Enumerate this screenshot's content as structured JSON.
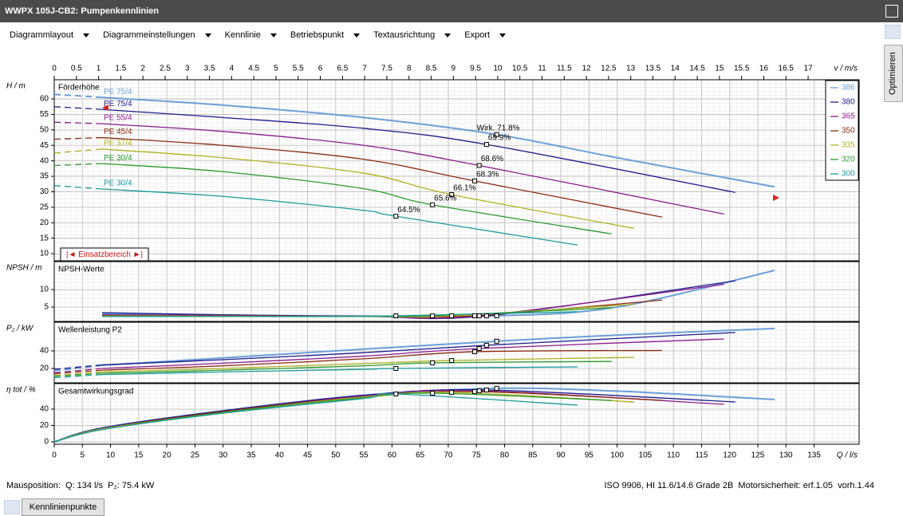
{
  "title_bar": "WWPX 105J-CB2: Pumpenkennlinien",
  "menu": [
    "Diagrammlayout",
    "Diagrammeinstellungen",
    "Kennlinie",
    "Betriebspunkt",
    "Textausrichtung",
    "Export"
  ],
  "side_tab": "Optimieren",
  "chart_data": {
    "type": "line",
    "x_label": "Q / l/s",
    "xlim": [
      0,
      143
    ],
    "xticks": [
      0,
      5,
      10,
      15,
      20,
      25,
      30,
      35,
      40,
      45,
      50,
      55,
      60,
      65,
      70,
      75,
      80,
      85,
      90,
      95,
      100,
      105,
      110,
      115,
      120,
      125,
      130,
      135
    ],
    "x2_label": "v / m/s",
    "x2lim": [
      0,
      18.15
    ],
    "x2ticks": [
      0,
      0.5,
      1,
      1.5,
      2,
      2.5,
      3,
      3.5,
      4,
      4.5,
      5,
      5.5,
      6,
      6.5,
      7,
      7.5,
      8,
      8.5,
      9,
      9.5,
      10,
      10.5,
      11,
      11.5,
      12,
      12.5,
      13,
      13.5,
      14,
      14.5,
      15,
      15.5,
      16,
      16.5,
      17
    ],
    "grid": true,
    "range_label": "|◄ Einsatzbereich ►|",
    "panels": [
      {
        "key": "h",
        "axis_label": "H / m",
        "title": "Förderhöhe",
        "ylim": [
          7.7,
          66.2
        ],
        "yticks": [
          10,
          15,
          20,
          25,
          30,
          35,
          40,
          45,
          50,
          55,
          60
        ],
        "lead_dashed": true
      },
      {
        "key": "npsh",
        "axis_label": "NPSH / m",
        "title": "NPSH-Werte",
        "ylim": [
          0.9,
          18
        ],
        "yticks": [
          5,
          10
        ],
        "lead_dashed": false
      },
      {
        "key": "p2",
        "axis_label": "P₂ / kW",
        "title": "Wellenleistung P2",
        "ylim": [
          3.6,
          72.7
        ],
        "yticks": [
          20,
          40
        ],
        "lead_dashed": true
      },
      {
        "key": "eta",
        "axis_label": "η tot / %",
        "title": "Gesamtwirkungsgrad",
        "ylim": [
          -2.9,
          71.2
        ],
        "yticks": [
          0,
          20,
          40
        ],
        "lead_dashed": false
      }
    ],
    "series": [
      {
        "name": "386",
        "color": "#6a9fd8",
        "curve_label": "PE 75/4",
        "x": [
          0,
          8.5,
          30,
          55,
          78.6,
          100,
          128
        ],
        "h": [
          61.5,
          60.5,
          58,
          54,
          48.5,
          41,
          31.6
        ],
        "npsh": [
          null,
          3.2,
          2.7,
          2.4,
          2.5,
          5,
          15.5
        ],
        "p2": [
          17.3,
          23.6,
          32,
          42,
          51,
          58,
          65.5
        ],
        "eta": [
          0,
          17,
          38,
          57,
          65.4,
          62,
          51.7
        ],
        "point_labels": [
          null,
          null,
          null,
          null,
          "Wirk.  71.8%",
          null,
          null
        ]
      },
      {
        "name": "380",
        "color": "#1c1c8c",
        "curve_label": "PE 75/4",
        "x": [
          0,
          8.5,
          30,
          55,
          76.8,
          121
        ],
        "h": [
          57.5,
          56.6,
          54,
          50.5,
          45.3,
          29.8
        ],
        "npsh": [
          null,
          3.4,
          2.8,
          2.4,
          2.5,
          12.5
        ],
        "p2": [
          19,
          24,
          30,
          38,
          46.4,
          61
        ],
        "eta": [
          0,
          17,
          38,
          57,
          63.4,
          48.8
        ],
        "point_labels": [
          null,
          null,
          null,
          null,
          "69.9%",
          null
        ]
      },
      {
        "name": "365",
        "color": "#8b1a8b",
        "curve_label": "PE 55/4",
        "x": [
          0,
          8.5,
          30,
          55,
          75.5,
          119
        ],
        "h": [
          52.5,
          52,
          49.5,
          45,
          38.5,
          22.8
        ],
        "npsh": [
          null,
          2.8,
          2.6,
          2.4,
          2.5,
          11.5
        ],
        "p2": [
          15,
          20,
          26,
          34,
          42.7,
          53.6
        ],
        "eta": [
          0,
          16,
          37,
          56,
          62.4,
          45.9
        ],
        "point_labels": [
          null,
          null,
          null,
          null,
          "68.6%",
          null
        ]
      },
      {
        "name": "350",
        "color": "#8b2a10",
        "curve_label": "PE 45/4",
        "x": [
          0,
          8.5,
          30,
          55,
          74.7,
          108
        ],
        "h": [
          47,
          47.5,
          45,
          40.5,
          33.5,
          21.8
        ],
        "npsh": [
          null,
          2.6,
          2.5,
          2.4,
          2.5,
          7
        ],
        "p2": [
          14,
          18,
          23,
          31,
          39,
          40.5
        ],
        "eta": [
          0,
          16,
          37,
          55,
          61.5,
          50.7
        ],
        "point_labels": [
          null,
          null,
          null,
          null,
          "68.3%",
          null
        ]
      },
      {
        "name": "335",
        "color": "#b0b020",
        "curve_label": "PE 37/4",
        "x": [
          0,
          8.5,
          30,
          55,
          70.6,
          103
        ],
        "h": [
          42.5,
          43.8,
          41,
          36,
          29.1,
          18.2
        ],
        "npsh": [
          null,
          2.5,
          2.4,
          2.3,
          2.5,
          5.8
        ],
        "p2": [
          12,
          16,
          20,
          25.5,
          29,
          32.7
        ],
        "eta": [
          0,
          16,
          36,
          55,
          60.5,
          48.8
        ],
        "point_labels": [
          null,
          null,
          null,
          null,
          "66.1%",
          null
        ]
      },
      {
        "name": "320",
        "color": "#2a9a2a",
        "curve_label": "PE 30/4",
        "x": [
          0,
          8.5,
          30,
          55,
          67.2,
          99
        ],
        "h": [
          38.5,
          39.1,
          36.5,
          31,
          25.8,
          16.4
        ],
        "npsh": [
          null,
          2.4,
          2.3,
          2.3,
          2.5,
          4.8
        ],
        "p2": [
          11,
          14.5,
          18,
          23,
          26.4,
          28
        ],
        "eta": [
          0,
          15,
          36,
          54,
          59.5,
          50.7
        ],
        "point_labels": [
          null,
          null,
          null,
          null,
          "65.6%",
          null
        ]
      },
      {
        "name": "300",
        "color": "#1a9a9a",
        "curve_label": "PE 30/4",
        "x": [
          0,
          8.5,
          30,
          55,
          60.7,
          93
        ],
        "h": [
          32,
          30.9,
          28.5,
          24,
          22.1,
          12.8
        ],
        "npsh": [
          null,
          2.3,
          2.3,
          2.4,
          2.5,
          3.7
        ],
        "p2": [
          9.5,
          13,
          16,
          19,
          20,
          21.8
        ],
        "eta": [
          0,
          15,
          35,
          53,
          58.5,
          44.9
        ],
        "point_labels": [
          null,
          null,
          null,
          null,
          "64.5%",
          null
        ]
      }
    ]
  },
  "status": {
    "mouse": "Mausposition:  Q: 134 l/s  P₂: 75.4 kW",
    "info": "ISO 9906, HI 11.6/14.6 Grade 2B  Motorsicherheit: erf.1.05  vorh.1.44"
  },
  "button": "Kennlinienpunkte"
}
